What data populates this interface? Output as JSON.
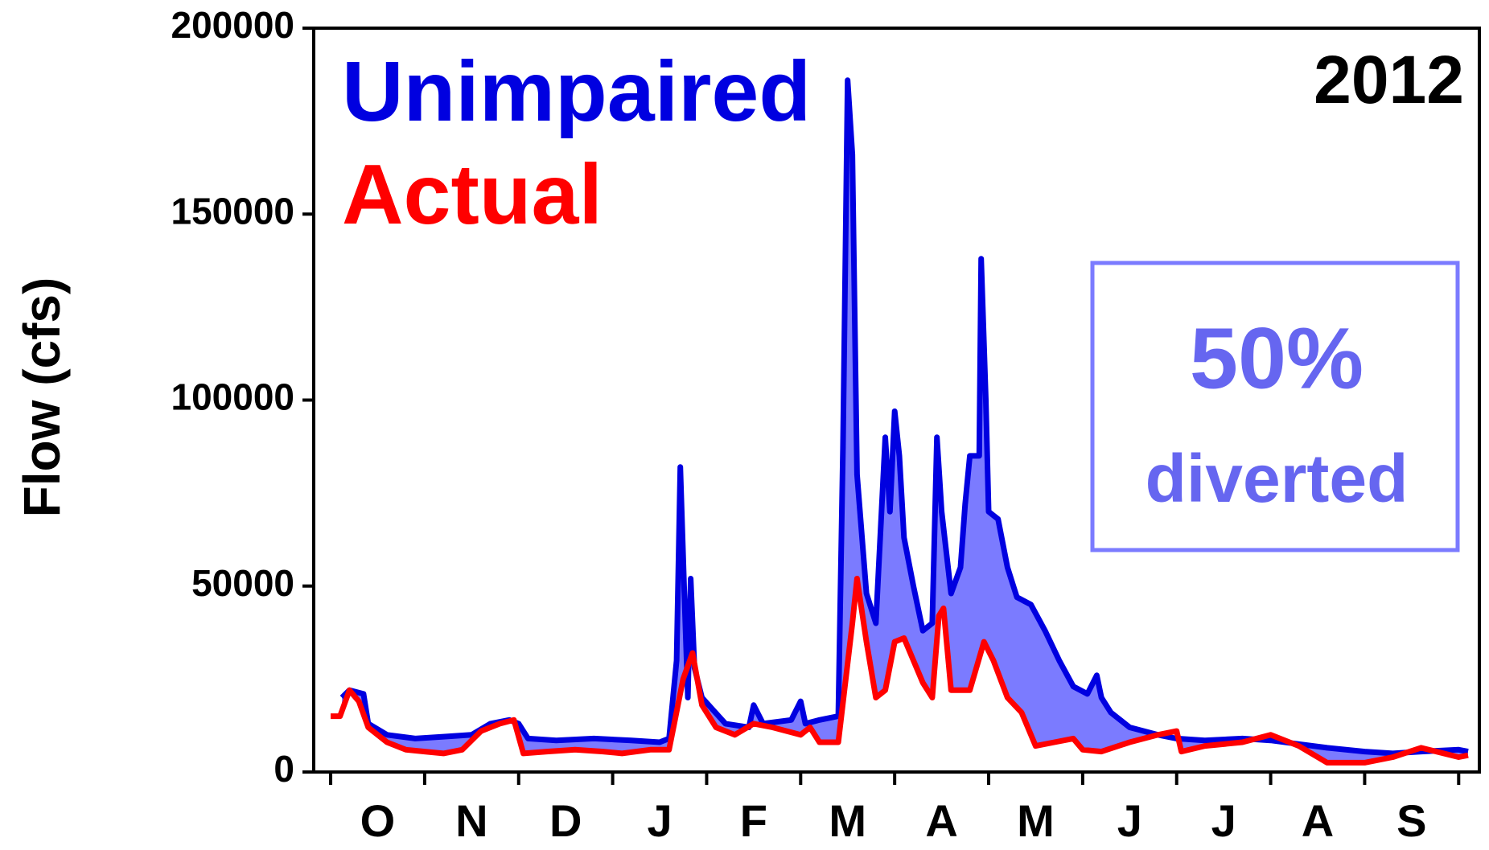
{
  "chart_data": {
    "type": "line",
    "annotations": {
      "year": "2012",
      "percent": "50%",
      "label": "diverted"
    },
    "ylabel": "Flow (cfs)",
    "categories": [
      "O",
      "N",
      "D",
      "J",
      "F",
      "M",
      "A",
      "M",
      "J",
      "J",
      "A",
      "S"
    ],
    "xlim": [
      -0.18,
      12.22
    ],
    "xticks": [
      0,
      1,
      2,
      3,
      4,
      5,
      6,
      7,
      8,
      9,
      10,
      11,
      12
    ],
    "ylim": [
      0,
      200000
    ],
    "yticks": [
      0,
      50000,
      100000,
      150000,
      200000
    ],
    "area_color": "#7b7bff",
    "series": [
      {
        "name": "Unimpaired",
        "color": "#0000e0",
        "x": [
          0.12,
          0.2,
          0.35,
          0.4,
          0.6,
          0.9,
          1.2,
          1.5,
          1.7,
          1.9,
          2.0,
          2.1,
          2.4,
          2.8,
          3.2,
          3.5,
          3.6,
          3.68,
          3.72,
          3.76,
          3.8,
          3.83,
          3.87,
          3.95,
          4.2,
          4.45,
          4.5,
          4.6,
          4.9,
          5.0,
          5.05,
          5.2,
          5.4,
          5.45,
          5.5,
          5.55,
          5.6,
          5.7,
          5.8,
          5.9,
          5.95,
          6.0,
          6.05,
          6.1,
          6.2,
          6.3,
          6.4,
          6.45,
          6.5,
          6.6,
          6.7,
          6.75,
          6.8,
          6.9,
          6.92,
          6.97,
          7.0,
          7.1,
          7.2,
          7.3,
          7.45,
          7.6,
          7.75,
          7.9,
          8.05,
          8.15,
          8.2,
          8.3,
          8.5,
          8.8,
          9.0,
          9.3,
          9.7,
          10.0,
          10.3,
          10.6,
          11.0,
          11.3,
          11.6,
          12.0,
          12.1
        ],
        "values": [
          20000,
          22000,
          21000,
          13000,
          10000,
          9000,
          9500,
          10000,
          13000,
          14000,
          13000,
          9000,
          8500,
          9000,
          8500,
          8000,
          9000,
          30000,
          82000,
          50000,
          20000,
          52000,
          28000,
          20000,
          13000,
          12000,
          18000,
          13000,
          14000,
          19000,
          13000,
          14000,
          15000,
          87000,
          186000,
          166000,
          80000,
          48000,
          40000,
          90000,
          70000,
          97000,
          85000,
          63000,
          50000,
          38000,
          40000,
          90000,
          70000,
          48000,
          55000,
          72000,
          85000,
          85000,
          138000,
          100000,
          70000,
          68000,
          55000,
          47000,
          45000,
          38000,
          30000,
          23000,
          21000,
          26000,
          20000,
          16000,
          12000,
          10000,
          9000,
          8500,
          9000,
          8500,
          7500,
          6500,
          5500,
          5000,
          5500,
          6000,
          5500
        ]
      },
      {
        "name": "Actual",
        "color": "#ff0000",
        "x": [
          0.0,
          0.1,
          0.2,
          0.3,
          0.4,
          0.6,
          0.8,
          1.0,
          1.2,
          1.4,
          1.6,
          1.8,
          1.95,
          2.05,
          2.3,
          2.6,
          2.9,
          3.1,
          3.4,
          3.6,
          3.75,
          3.85,
          3.95,
          4.1,
          4.3,
          4.5,
          4.7,
          5.0,
          5.1,
          5.2,
          5.4,
          5.55,
          5.6,
          5.7,
          5.8,
          5.9,
          6.0,
          6.1,
          6.2,
          6.3,
          6.4,
          6.47,
          6.52,
          6.6,
          6.8,
          6.95,
          7.05,
          7.2,
          7.35,
          7.5,
          7.7,
          7.9,
          8.0,
          8.2,
          8.5,
          8.8,
          9.0,
          9.05,
          9.3,
          9.7,
          10.0,
          10.3,
          10.6,
          11.0,
          11.3,
          11.6,
          12.0,
          12.1
        ],
        "values": [
          15000,
          15000,
          22000,
          19000,
          12000,
          8000,
          6000,
          5500,
          5000,
          6000,
          11000,
          13000,
          14000,
          5000,
          5500,
          6000,
          5500,
          5000,
          6000,
          6000,
          25000,
          32000,
          18000,
          12000,
          10000,
          13000,
          12000,
          10000,
          12000,
          8000,
          8000,
          40000,
          52000,
          35000,
          20000,
          22000,
          35000,
          36000,
          30000,
          24000,
          20000,
          42000,
          44000,
          22000,
          22000,
          35000,
          30000,
          20000,
          16000,
          7000,
          8000,
          9000,
          6000,
          5500,
          8000,
          10000,
          11000,
          5500,
          7000,
          8000,
          10000,
          7000,
          2500,
          2500,
          4000,
          6500,
          4000,
          4500
        ]
      }
    ]
  }
}
